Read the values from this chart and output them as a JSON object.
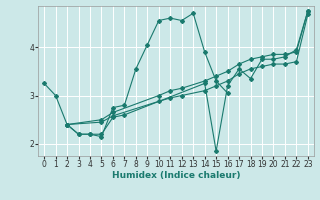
{
  "xlabel": "Humidex (Indice chaleur)",
  "background_color": "#cce8e8",
  "grid_color": "#ffffff",
  "line_color": "#1a7a6e",
  "xlim": [
    -0.5,
    23.5
  ],
  "ylim": [
    1.75,
    4.85
  ],
  "yticks": [
    2,
    3,
    4
  ],
  "xticks": [
    0,
    1,
    2,
    3,
    4,
    5,
    6,
    7,
    8,
    9,
    10,
    11,
    12,
    13,
    14,
    15,
    16,
    17,
    18,
    19,
    20,
    21,
    22,
    23
  ],
  "series": [
    {
      "x": [
        0,
        1,
        2,
        3,
        4,
        5,
        6,
        7,
        8,
        9,
        10,
        11,
        12,
        13,
        14,
        15,
        16
      ],
      "y": [
        3.25,
        3.0,
        2.4,
        2.2,
        2.2,
        2.15,
        2.75,
        2.8,
        3.55,
        4.05,
        4.55,
        4.6,
        4.55,
        4.7,
        3.9,
        3.3,
        3.05
      ]
    },
    {
      "x": [
        2,
        5,
        6,
        10,
        11,
        12,
        14,
        15,
        16,
        17,
        18,
        19,
        20,
        21,
        22,
        23
      ],
      "y": [
        2.4,
        2.5,
        2.65,
        3.0,
        3.1,
        3.15,
        3.3,
        3.4,
        3.5,
        3.65,
        3.75,
        3.8,
        3.85,
        3.85,
        3.9,
        4.75
      ]
    },
    {
      "x": [
        2,
        5,
        6,
        10,
        11,
        12,
        14,
        15,
        16,
        17,
        18,
        19,
        20,
        21,
        22,
        23
      ],
      "y": [
        2.4,
        2.45,
        2.58,
        2.88,
        2.95,
        3.0,
        3.1,
        3.2,
        3.3,
        3.45,
        3.55,
        3.6,
        3.65,
        3.65,
        3.7,
        4.68
      ]
    },
    {
      "x": [
        2,
        3,
        4,
        5,
        6,
        7,
        14,
        15,
        16,
        17,
        18,
        19,
        20,
        21,
        22,
        23
      ],
      "y": [
        2.4,
        2.2,
        2.2,
        2.2,
        2.55,
        2.6,
        3.25,
        1.85,
        3.2,
        3.55,
        3.35,
        3.75,
        3.75,
        3.8,
        3.95,
        4.75
      ]
    }
  ]
}
